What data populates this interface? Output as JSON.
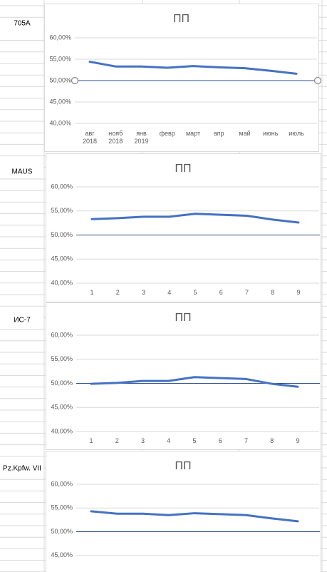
{
  "row_labels": [
    "705A",
    "MAUS",
    "ИС-7",
    "Pz.Kpfw. VII"
  ],
  "chart_data": [
    {
      "type": "line",
      "title": "ПП",
      "categories": [
        "авг\n2018",
        "нояб\n2018",
        "янв\n2019",
        "февр",
        "март",
        "апр",
        "май",
        "июнь",
        "июль"
      ],
      "series": [
        {
          "color": "#4472c4",
          "values": [
            54.4,
            53.3,
            53.3,
            53.0,
            53.4,
            53.1,
            52.9,
            52.3,
            51.6
          ]
        }
      ],
      "reference_line": {
        "value": 50,
        "color": "#2f4d8c"
      },
      "ylim": [
        40,
        60
      ],
      "yticks": [
        {
          "value": 40,
          "label": "40,00%"
        },
        {
          "value": 45,
          "label": "45,00%"
        },
        {
          "value": 50,
          "label": "50,00%"
        },
        {
          "value": 55,
          "label": "55,00%"
        },
        {
          "value": 60,
          "label": "60,00%"
        }
      ]
    },
    {
      "type": "line",
      "title": "ПП",
      "categories": [
        "1",
        "2",
        "3",
        "4",
        "5",
        "6",
        "7",
        "8",
        "9"
      ],
      "series": [
        {
          "color": "#4472c4",
          "values": [
            53.3,
            53.5,
            53.8,
            53.8,
            54.4,
            54.2,
            54.0,
            53.2,
            52.6
          ]
        }
      ],
      "reference_line": {
        "value": 50,
        "color": "#2f4d8c"
      },
      "ylim": [
        40,
        60
      ],
      "yticks": [
        {
          "value": 40,
          "label": "40,00%"
        },
        {
          "value": 45,
          "label": "45,00%"
        },
        {
          "value": 50,
          "label": "50,00%"
        },
        {
          "value": 55,
          "label": "55,00%"
        },
        {
          "value": 60,
          "label": "60,00%"
        }
      ]
    },
    {
      "type": "line",
      "title": "ПП",
      "categories": [
        "1",
        "2",
        "3",
        "4",
        "5",
        "6",
        "7",
        "8",
        "9"
      ],
      "series": [
        {
          "color": "#4472c4",
          "values": [
            49.9,
            50.1,
            50.5,
            50.5,
            51.3,
            51.1,
            50.9,
            49.9,
            49.3
          ]
        }
      ],
      "reference_line": {
        "value": 50,
        "color": "#2f4d8c"
      },
      "ylim": [
        40,
        60
      ],
      "yticks": [
        {
          "value": 40,
          "label": "40,00%"
        },
        {
          "value": 45,
          "label": "45,00%"
        },
        {
          "value": 50,
          "label": "50,00%"
        },
        {
          "value": 55,
          "label": "55,00%"
        },
        {
          "value": 60,
          "label": "60,00%"
        }
      ]
    },
    {
      "type": "line",
      "title": "ПП",
      "series": [
        {
          "color": "#4472c4",
          "values": [
            54.3,
            53.8,
            53.8,
            53.5,
            53.9,
            53.7,
            53.5,
            52.8,
            52.2
          ]
        }
      ],
      "reference_line": {
        "value": 50,
        "color": "#2f4d8c"
      },
      "ylim": [
        40,
        60
      ],
      "yticks": [
        {
          "value": 45,
          "label": "45,00%"
        },
        {
          "value": 50,
          "label": "50,00%"
        },
        {
          "value": 55,
          "label": "55,00%"
        },
        {
          "value": 60,
          "label": "60,00%"
        }
      ]
    }
  ]
}
